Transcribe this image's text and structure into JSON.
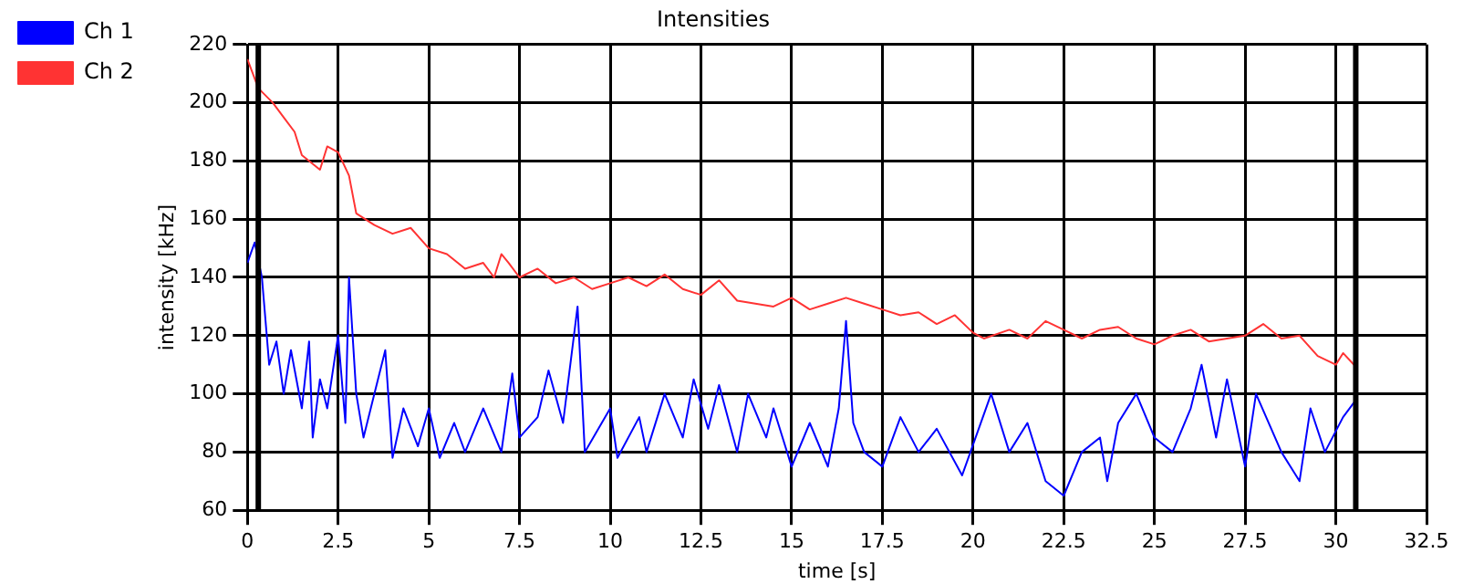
{
  "chart_data": {
    "type": "line",
    "title": "Intensities",
    "xlabel": "time [s]",
    "ylabel": "intensity [kHz]",
    "xlim": [
      0,
      32.5
    ],
    "ylim": [
      60,
      220
    ],
    "xticks": [
      0,
      2.5,
      5,
      7.5,
      10,
      12.5,
      15,
      17.5,
      20,
      22.5,
      25,
      27.5,
      30,
      32.5
    ],
    "yticks": [
      60,
      80,
      100,
      120,
      140,
      160,
      180,
      200,
      220
    ],
    "grid": true,
    "legend": "left",
    "marker": "none",
    "line_style": "solid",
    "ref_lines": [
      {
        "axis": "x",
        "value": 0.3,
        "color": "#000000"
      },
      {
        "axis": "x",
        "value": 30.55,
        "color": "#000000"
      }
    ],
    "series": [
      {
        "name": "Ch 1",
        "color": "#0000ff",
        "x": [
          0,
          0.2,
          0.4,
          0.6,
          0.8,
          1.0,
          1.2,
          1.5,
          1.7,
          1.8,
          2.0,
          2.2,
          2.5,
          2.7,
          2.8,
          3.0,
          3.2,
          3.5,
          3.8,
          4.0,
          4.3,
          4.7,
          5.0,
          5.3,
          5.7,
          6.0,
          6.5,
          7.0,
          7.3,
          7.5,
          8.0,
          8.3,
          8.7,
          9.1,
          9.3,
          10,
          10.2,
          10.8,
          11,
          11.5,
          12,
          12.3,
          12.7,
          13,
          13.5,
          13.8,
          14.3,
          14.5,
          15,
          15.5,
          16,
          16.3,
          16.5,
          16.7,
          17,
          17.5,
          18,
          18.5,
          19,
          19.7,
          20.5,
          21,
          21.5,
          22,
          22.5,
          23,
          23.5,
          23.7,
          24,
          24.5,
          25,
          25.5,
          26,
          26.3,
          26.7,
          27,
          27.5,
          27.8,
          28.5,
          29,
          29.3,
          29.7,
          30.2,
          30.5
        ],
        "values": [
          145,
          152,
          140,
          110,
          118,
          100,
          115,
          95,
          118,
          85,
          105,
          95,
          120,
          90,
          140,
          100,
          85,
          100,
          115,
          78,
          95,
          82,
          95,
          78,
          90,
          80,
          95,
          80,
          107,
          85,
          92,
          108,
          90,
          130,
          80,
          95,
          78,
          92,
          80,
          100,
          85,
          105,
          88,
          103,
          80,
          100,
          85,
          95,
          75,
          90,
          75,
          95,
          125,
          90,
          80,
          75,
          92,
          80,
          88,
          72,
          100,
          80,
          90,
          70,
          65,
          80,
          85,
          70,
          90,
          100,
          85,
          80,
          95,
          110,
          85,
          105,
          75,
          100,
          80,
          70,
          95,
          80,
          92,
          97
        ]
      },
      {
        "name": "Ch 2",
        "color": "#ff3333",
        "x": [
          0,
          0.3,
          0.7,
          1.0,
          1.3,
          1.5,
          2.0,
          2.2,
          2.5,
          2.8,
          3.0,
          3.5,
          4.0,
          4.5,
          5.0,
          5.5,
          6.0,
          6.5,
          6.8,
          7.0,
          7.2,
          7.5,
          8.0,
          8.5,
          9.0,
          9.5,
          10,
          10.5,
          11,
          11.5,
          12,
          12.5,
          13,
          13.5,
          14.5,
          15,
          15.5,
          16,
          16.5,
          17,
          17.5,
          18,
          18.5,
          19,
          19.5,
          20,
          20.3,
          21,
          21.5,
          22,
          22.5,
          23,
          23.5,
          24,
          24.5,
          25,
          25.5,
          26,
          26.5,
          27.5,
          28,
          28.5,
          29,
          29.5,
          30,
          30.2,
          30.5
        ],
        "values": [
          215,
          205,
          200,
          195,
          190,
          182,
          177,
          185,
          183,
          175,
          162,
          158,
          155,
          157,
          150,
          148,
          143,
          145,
          140,
          148,
          145,
          140,
          143,
          138,
          140,
          136,
          138,
          140,
          137,
          141,
          136,
          134,
          139,
          132,
          130,
          133,
          129,
          131,
          133,
          131,
          129,
          127,
          128,
          124,
          127,
          121,
          119,
          122,
          119,
          125,
          122,
          119,
          122,
          123,
          119,
          117,
          120,
          122,
          118,
          120,
          124,
          119,
          120,
          113,
          110,
          114,
          110
        ]
      }
    ]
  }
}
